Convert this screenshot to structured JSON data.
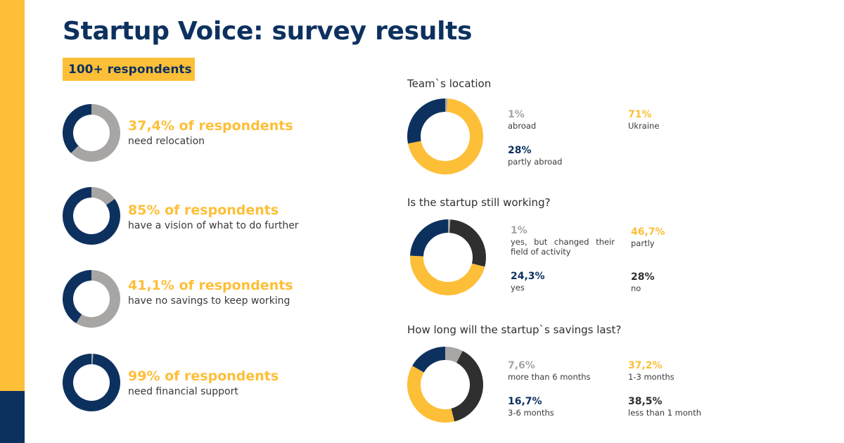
{
  "page": {
    "title": "Startup Voice: survey results",
    "badge": "100+ respondents"
  },
  "colors": {
    "navy": "#0d315f",
    "yellow": "#fdbf38",
    "grey": "#a8a5a5",
    "dark": "#2f2f2f"
  },
  "stats": [
    {
      "percent_label": "37,4% of respondents",
      "description": "need relocation",
      "value": 37.4
    },
    {
      "percent_label": "85% of respondents",
      "description": "have a vision of what to do further",
      "value": 85
    },
    {
      "percent_label": "41,1% of respondents",
      "description": "have no savings to keep working",
      "value": 41.1
    },
    {
      "percent_label": "99% of respondents",
      "description": "need financial support",
      "value": 99
    }
  ],
  "chart_data": [
    {
      "type": "pie",
      "title": "Team`s location",
      "slices": [
        {
          "label": "abroad",
          "value": 1,
          "display": "1%",
          "color": "grey"
        },
        {
          "label": "Ukraine",
          "value": 71,
          "display": "71%",
          "color": "yellow"
        },
        {
          "label": "partly abroad",
          "value": 28,
          "display": "28%",
          "color": "navy"
        }
      ]
    },
    {
      "type": "pie",
      "title": "Is the startup still working?",
      "slices": [
        {
          "label": "yes, but changed their field of activity",
          "value": 1,
          "display": "1%",
          "color": "grey"
        },
        {
          "label": "no",
          "value": 28,
          "display": "28%",
          "color": "dark"
        },
        {
          "label": "partly",
          "value": 46.7,
          "display": "46,7%",
          "color": "yellow"
        },
        {
          "label": "yes",
          "value": 24.3,
          "display": "24,3%",
          "color": "navy"
        }
      ]
    },
    {
      "type": "pie",
      "title": "How long will the startup`s savings last?",
      "slices": [
        {
          "label": "more than 6 months",
          "value": 7.6,
          "display": "7,6%",
          "color": "grey"
        },
        {
          "label": "less than 1 month",
          "value": 38.5,
          "display": "38,5%",
          "color": "dark"
        },
        {
          "label": "1-3 months",
          "value": 37.2,
          "display": "37,2%",
          "color": "yellow"
        },
        {
          "label": "3-6 months",
          "value": 16.7,
          "display": "16,7%",
          "color": "navy"
        }
      ]
    }
  ]
}
